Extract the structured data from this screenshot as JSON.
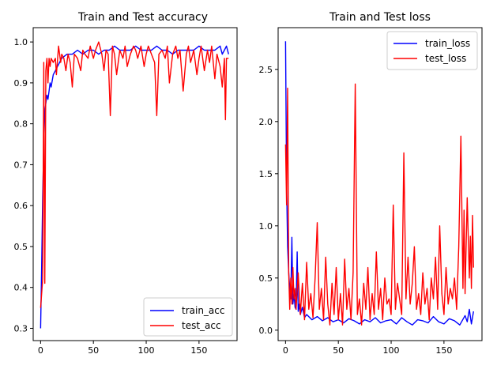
{
  "colors": {
    "train": "#0000ff",
    "test": "#ff0000"
  },
  "chart_data": [
    {
      "type": "line",
      "title": "Train and Test accuracy",
      "xlabel": "",
      "ylabel": "",
      "xlim": [
        -7,
        186
      ],
      "ylim": [
        0.27,
        1.035
      ],
      "xticks": [
        0,
        50,
        100,
        150
      ],
      "yticks": [
        0.3,
        0.4,
        0.5,
        0.6,
        0.7,
        0.8,
        0.9,
        1.0
      ],
      "xtick_labels": [
        "0",
        "50",
        "100",
        "150"
      ],
      "ytick_labels": [
        "0.3",
        "0.4",
        "0.5",
        "0.6",
        "0.7",
        "0.8",
        "0.9",
        "1.0"
      ],
      "legend": "lower-right",
      "grid": false,
      "series": [
        {
          "name": "train_acc",
          "color": "#0000ff",
          "x": [
            0,
            1,
            2,
            3,
            4,
            5,
            6,
            7,
            8,
            9,
            10,
            12,
            14,
            16,
            18,
            20,
            25,
            30,
            35,
            40,
            45,
            50,
            55,
            60,
            65,
            70,
            75,
            80,
            85,
            90,
            95,
            100,
            105,
            110,
            115,
            120,
            125,
            130,
            135,
            140,
            145,
            150,
            155,
            160,
            165,
            170,
            172,
            174,
            176,
            178
          ],
          "y": [
            0.3,
            0.45,
            0.62,
            0.75,
            0.83,
            0.85,
            0.87,
            0.86,
            0.88,
            0.9,
            0.89,
            0.92,
            0.93,
            0.94,
            0.95,
            0.96,
            0.97,
            0.97,
            0.98,
            0.97,
            0.98,
            0.98,
            0.97,
            0.98,
            0.98,
            0.99,
            0.98,
            0.98,
            0.98,
            0.99,
            0.98,
            0.98,
            0.98,
            0.99,
            0.98,
            0.98,
            0.97,
            0.98,
            0.98,
            0.98,
            0.98,
            0.99,
            0.98,
            0.98,
            0.98,
            0.99,
            0.97,
            0.98,
            0.99,
            0.97
          ]
        },
        {
          "name": "test_acc",
          "color": "#ff0000",
          "x": [
            0,
            2,
            3,
            4,
            5,
            6,
            7,
            8,
            9,
            10,
            12,
            14,
            15,
            17,
            19,
            20,
            22,
            24,
            26,
            28,
            30,
            32,
            35,
            38,
            40,
            42,
            45,
            47,
            50,
            52,
            55,
            58,
            60,
            62,
            64,
            66,
            68,
            70,
            72,
            75,
            78,
            80,
            82,
            85,
            88,
            90,
            92,
            95,
            98,
            100,
            102,
            105,
            108,
            110,
            112,
            115,
            118,
            120,
            122,
            125,
            128,
            130,
            132,
            135,
            138,
            140,
            142,
            145,
            148,
            150,
            152,
            155,
            158,
            160,
            162,
            165,
            167,
            170,
            172,
            174,
            175,
            176,
            178
          ],
          "y": [
            0.35,
            0.42,
            0.95,
            0.41,
            0.93,
            0.96,
            0.9,
            0.96,
            0.94,
            0.96,
            0.95,
            0.96,
            0.92,
            0.99,
            0.95,
            0.97,
            0.96,
            0.93,
            0.97,
            0.95,
            0.89,
            0.97,
            0.96,
            0.93,
            0.98,
            0.97,
            0.96,
            0.99,
            0.96,
            0.98,
            1.0,
            0.97,
            0.93,
            0.98,
            0.97,
            0.82,
            0.99,
            0.97,
            0.92,
            0.98,
            0.96,
            0.99,
            0.94,
            0.97,
            0.99,
            0.98,
            0.96,
            0.99,
            0.94,
            0.97,
            0.99,
            0.97,
            0.95,
            0.82,
            0.97,
            0.98,
            0.96,
            0.99,
            0.9,
            0.97,
            0.99,
            0.96,
            0.98,
            0.88,
            0.97,
            0.99,
            0.95,
            0.98,
            0.92,
            0.96,
            0.99,
            0.93,
            0.98,
            0.95,
            0.99,
            0.91,
            0.97,
            0.94,
            0.89,
            0.96,
            0.81,
            0.96,
            0.96
          ]
        }
      ]
    },
    {
      "type": "line",
      "title": "Train and Test loss",
      "xlabel": "",
      "ylabel": "",
      "xlim": [
        -7,
        186
      ],
      "ylim": [
        -0.1,
        2.9
      ],
      "xticks": [
        0,
        50,
        100,
        150
      ],
      "yticks": [
        0.0,
        0.5,
        1.0,
        1.5,
        2.0,
        2.5
      ],
      "xtick_labels": [
        "0",
        "50",
        "100",
        "150"
      ],
      "ytick_labels": [
        "0.0",
        "0.5",
        "1.0",
        "1.5",
        "2.0",
        "2.5"
      ],
      "legend": "upper-right",
      "grid": false,
      "series": [
        {
          "name": "train_loss",
          "color": "#0000ff",
          "x": [
            0,
            1,
            2,
            3,
            4,
            5,
            6,
            7,
            8,
            9,
            10,
            11,
            12,
            13,
            14,
            16,
            18,
            20,
            25,
            30,
            35,
            40,
            45,
            50,
            55,
            60,
            65,
            70,
            75,
            80,
            85,
            90,
            95,
            100,
            105,
            110,
            115,
            120,
            125,
            130,
            135,
            140,
            145,
            150,
            155,
            160,
            165,
            170,
            172,
            174,
            176,
            178
          ],
          "y": [
            2.77,
            1.4,
            0.8,
            0.55,
            0.4,
            0.3,
            0.89,
            0.25,
            0.35,
            0.22,
            0.2,
            0.75,
            0.18,
            0.25,
            0.15,
            0.22,
            0.12,
            0.15,
            0.1,
            0.13,
            0.09,
            0.12,
            0.08,
            0.1,
            0.07,
            0.11,
            0.09,
            0.06,
            0.1,
            0.08,
            0.12,
            0.07,
            0.09,
            0.1,
            0.06,
            0.12,
            0.08,
            0.05,
            0.1,
            0.09,
            0.07,
            0.13,
            0.08,
            0.06,
            0.11,
            0.09,
            0.05,
            0.14,
            0.08,
            0.2,
            0.06,
            0.18
          ]
        },
        {
          "name": "test_loss",
          "color": "#ff0000",
          "x": [
            0,
            1,
            2,
            3,
            4,
            5,
            6,
            7,
            8,
            9,
            10,
            12,
            14,
            16,
            18,
            20,
            22,
            24,
            26,
            28,
            30,
            32,
            34,
            36,
            38,
            40,
            42,
            44,
            46,
            48,
            50,
            52,
            54,
            56,
            58,
            60,
            62,
            64,
            66,
            68,
            70,
            72,
            74,
            76,
            78,
            80,
            82,
            84,
            86,
            88,
            90,
            92,
            94,
            96,
            98,
            100,
            102,
            104,
            106,
            108,
            110,
            112,
            114,
            116,
            118,
            120,
            122,
            124,
            126,
            128,
            130,
            132,
            134,
            136,
            138,
            140,
            142,
            144,
            146,
            148,
            150,
            152,
            154,
            156,
            158,
            160,
            162,
            164,
            166,
            168,
            169,
            170,
            172,
            174,
            175,
            176,
            177,
            178
          ],
          "y": [
            1.78,
            1.2,
            2.32,
            0.55,
            0.2,
            0.5,
            0.25,
            0.6,
            0.3,
            0.4,
            0.2,
            0.55,
            0.15,
            0.45,
            0.1,
            0.65,
            0.2,
            0.35,
            0.12,
            0.5,
            1.03,
            0.2,
            0.4,
            0.1,
            0.7,
            0.25,
            0.05,
            0.45,
            0.15,
            0.6,
            0.1,
            0.35,
            0.05,
            0.68,
            0.2,
            0.4,
            0.1,
            0.55,
            2.36,
            0.15,
            0.3,
            0.05,
            0.45,
            0.2,
            0.6,
            0.1,
            0.35,
            0.15,
            0.75,
            0.2,
            0.4,
            0.1,
            0.5,
            0.25,
            0.3,
            0.15,
            1.2,
            0.2,
            0.45,
            0.3,
            0.15,
            1.7,
            0.3,
            0.7,
            0.25,
            0.45,
            0.8,
            0.2,
            0.35,
            0.15,
            0.55,
            0.25,
            0.4,
            0.1,
            0.5,
            0.3,
            0.7,
            0.2,
            1.0,
            0.35,
            0.15,
            0.6,
            0.25,
            0.4,
            0.3,
            0.5,
            0.2,
            0.8,
            1.86,
            0.4,
            1.15,
            0.35,
            1.27,
            0.5,
            0.9,
            0.4,
            1.1,
            0.6
          ]
        }
      ]
    }
  ]
}
